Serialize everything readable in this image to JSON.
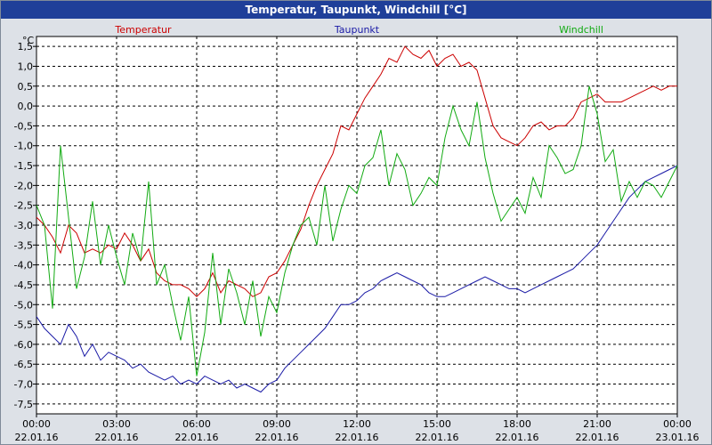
{
  "window": {
    "title": "Temperatur, Taupunkt, Windchill [°C]"
  },
  "chart_data": {
    "type": "line",
    "title": "Temperatur, Taupunkt, Windchill [°C]",
    "ylabel": "°C",
    "ylim": [
      -7.75,
      1.75
    ],
    "yticks": [
      "1,5",
      "1,0",
      "0,5",
      "0,0",
      "-0,5",
      "-1,0",
      "-1,5",
      "-2,0",
      "-2,5",
      "-3,0",
      "-3,5",
      "-4,0",
      "-4,5",
      "-5,0",
      "-5,5",
      "-6,0",
      "-6,5",
      "-7,0",
      "-7,5"
    ],
    "xlim": [
      0,
      24
    ],
    "xticks": [
      {
        "time": "00:00",
        "date": "22.01.16"
      },
      {
        "time": "03:00",
        "date": "22.01.16"
      },
      {
        "time": "06:00",
        "date": "22.01.16"
      },
      {
        "time": "09:00",
        "date": "22.01.16"
      },
      {
        "time": "12:00",
        "date": "22.01.16"
      },
      {
        "time": "15:00",
        "date": "22.01.16"
      },
      {
        "time": "18:00",
        "date": "22.01.16"
      },
      {
        "time": "21:00",
        "date": "22.01.16"
      },
      {
        "time": "00:00",
        "date": "23.01.16"
      }
    ],
    "grid": true,
    "legend_position": "top",
    "series": [
      {
        "name": "Temperatur",
        "color": "#cc0000",
        "x": [
          0,
          0.3,
          0.6,
          0.9,
          1.2,
          1.5,
          1.8,
          2.1,
          2.4,
          2.7,
          3.0,
          3.3,
          3.6,
          3.9,
          4.2,
          4.5,
          4.8,
          5.1,
          5.4,
          5.7,
          6.0,
          6.3,
          6.6,
          6.9,
          7.2,
          7.5,
          7.8,
          8.1,
          8.4,
          8.7,
          9.0,
          9.3,
          9.6,
          9.9,
          10.2,
          10.5,
          10.8,
          11.1,
          11.4,
          11.7,
          12.0,
          12.3,
          12.6,
          12.9,
          13.2,
          13.5,
          13.8,
          14.1,
          14.4,
          14.7,
          15.0,
          15.3,
          15.6,
          15.9,
          16.2,
          16.5,
          16.8,
          17.1,
          17.4,
          17.7,
          18.0,
          18.3,
          18.6,
          18.9,
          19.2,
          19.5,
          19.8,
          20.1,
          20.4,
          20.7,
          21.0,
          21.3,
          21.6,
          21.9,
          22.2,
          22.5,
          22.8,
          23.1,
          23.4,
          23.7,
          24.0
        ],
        "y": [
          -2.8,
          -3.0,
          -3.3,
          -3.7,
          -3.0,
          -3.2,
          -3.7,
          -3.6,
          -3.7,
          -3.5,
          -3.6,
          -3.2,
          -3.5,
          -3.9,
          -3.6,
          -4.2,
          -4.4,
          -4.5,
          -4.5,
          -4.6,
          -4.8,
          -4.6,
          -4.2,
          -4.7,
          -4.4,
          -4.5,
          -4.6,
          -4.8,
          -4.7,
          -4.3,
          -4.2,
          -3.9,
          -3.5,
          -3.1,
          -2.5,
          -2.0,
          -1.6,
          -1.2,
          -0.5,
          -0.6,
          -0.2,
          0.2,
          0.5,
          0.8,
          1.2,
          1.1,
          1.5,
          1.3,
          1.2,
          1.4,
          1.0,
          1.2,
          1.3,
          1.0,
          1.1,
          0.9,
          0.2,
          -0.5,
          -0.8,
          -0.9,
          -1.0,
          -0.8,
          -0.5,
          -0.4,
          -0.6,
          -0.5,
          -0.5,
          -0.3,
          0.1,
          0.2,
          0.3,
          0.1,
          0.1,
          0.1,
          0.2,
          0.3,
          0.4,
          0.5,
          0.4,
          0.5,
          0.5
        ]
      },
      {
        "name": "Taupunkt",
        "color": "#1a1aa6",
        "x": [
          0,
          0.3,
          0.6,
          0.9,
          1.2,
          1.5,
          1.8,
          2.1,
          2.4,
          2.7,
          3.0,
          3.3,
          3.6,
          3.9,
          4.2,
          4.5,
          4.8,
          5.1,
          5.4,
          5.7,
          6.0,
          6.3,
          6.6,
          6.9,
          7.2,
          7.5,
          7.8,
          8.1,
          8.4,
          8.7,
          9.0,
          9.3,
          9.6,
          9.9,
          10.2,
          10.5,
          10.8,
          11.1,
          11.4,
          11.7,
          12.0,
          12.3,
          12.6,
          12.9,
          13.2,
          13.5,
          13.8,
          14.1,
          14.4,
          14.7,
          15.0,
          15.3,
          15.6,
          15.9,
          16.2,
          16.5,
          16.8,
          17.1,
          17.4,
          17.7,
          18.0,
          18.3,
          18.6,
          18.9,
          19.2,
          19.5,
          19.8,
          20.1,
          20.4,
          20.7,
          21.0,
          21.3,
          21.6,
          21.9,
          22.2,
          22.5,
          22.8,
          23.1,
          23.4,
          23.7,
          24.0
        ],
        "y": [
          -5.3,
          -5.6,
          -5.8,
          -6.0,
          -5.5,
          -5.8,
          -6.3,
          -6.0,
          -6.4,
          -6.2,
          -6.3,
          -6.4,
          -6.6,
          -6.5,
          -6.7,
          -6.8,
          -6.9,
          -6.8,
          -7.0,
          -6.9,
          -7.0,
          -6.8,
          -6.9,
          -7.0,
          -6.9,
          -7.1,
          -7.0,
          -7.1,
          -7.2,
          -7.0,
          -6.9,
          -6.6,
          -6.4,
          -6.2,
          -6.0,
          -5.8,
          -5.6,
          -5.3,
          -5.0,
          -5.0,
          -4.9,
          -4.7,
          -4.6,
          -4.4,
          -4.3,
          -4.2,
          -4.3,
          -4.4,
          -4.5,
          -4.7,
          -4.8,
          -4.8,
          -4.7,
          -4.6,
          -4.5,
          -4.4,
          -4.3,
          -4.4,
          -4.5,
          -4.6,
          -4.6,
          -4.7,
          -4.6,
          -4.5,
          -4.4,
          -4.3,
          -4.2,
          -4.1,
          -3.9,
          -3.7,
          -3.5,
          -3.2,
          -2.9,
          -2.6,
          -2.3,
          -2.1,
          -1.9,
          -1.8,
          -1.7,
          -1.6,
          -1.5
        ]
      },
      {
        "name": "Windchill",
        "color": "#11aa11",
        "x": [
          0,
          0.3,
          0.6,
          0.9,
          1.2,
          1.5,
          1.8,
          2.1,
          2.4,
          2.7,
          3.0,
          3.3,
          3.6,
          3.9,
          4.2,
          4.5,
          4.8,
          5.1,
          5.4,
          5.7,
          6.0,
          6.3,
          6.6,
          6.9,
          7.2,
          7.5,
          7.8,
          8.1,
          8.4,
          8.7,
          9.0,
          9.3,
          9.6,
          9.9,
          10.2,
          10.5,
          10.8,
          11.1,
          11.4,
          11.7,
          12.0,
          12.3,
          12.6,
          12.9,
          13.2,
          13.5,
          13.8,
          14.1,
          14.4,
          14.7,
          15.0,
          15.3,
          15.6,
          15.9,
          16.2,
          16.5,
          16.8,
          17.1,
          17.4,
          17.7,
          18.0,
          18.3,
          18.6,
          18.9,
          19.2,
          19.5,
          19.8,
          20.1,
          20.4,
          20.7,
          21.0,
          21.3,
          21.6,
          21.9,
          22.2,
          22.5,
          22.8,
          23.1,
          23.4,
          23.7,
          24.0
        ],
        "y": [
          -2.5,
          -3.0,
          -5.1,
          -1.0,
          -2.8,
          -4.6,
          -3.8,
          -2.4,
          -4.0,
          -3.0,
          -3.8,
          -4.5,
          -3.2,
          -3.9,
          -1.9,
          -4.5,
          -4.0,
          -5.0,
          -5.9,
          -4.8,
          -6.8,
          -5.7,
          -3.7,
          -5.5,
          -4.1,
          -4.7,
          -5.5,
          -4.4,
          -5.8,
          -4.8,
          -5.2,
          -4.2,
          -3.5,
          -3.0,
          -2.8,
          -3.5,
          -2.0,
          -3.4,
          -2.6,
          -2.0,
          -2.2,
          -1.5,
          -1.3,
          -0.6,
          -2.0,
          -1.2,
          -1.6,
          -2.5,
          -2.2,
          -1.8,
          -2.0,
          -0.8,
          0.0,
          -0.6,
          -1.0,
          0.1,
          -1.3,
          -2.2,
          -2.9,
          -2.6,
          -2.3,
          -2.7,
          -1.8,
          -2.3,
          -1.0,
          -1.3,
          -1.7,
          -1.6,
          -1.0,
          0.5,
          -0.2,
          -1.4,
          -1.1,
          -2.4,
          -1.9,
          -2.3,
          -1.9,
          -2.0,
          -2.3,
          -1.9,
          -1.5
        ]
      }
    ]
  }
}
